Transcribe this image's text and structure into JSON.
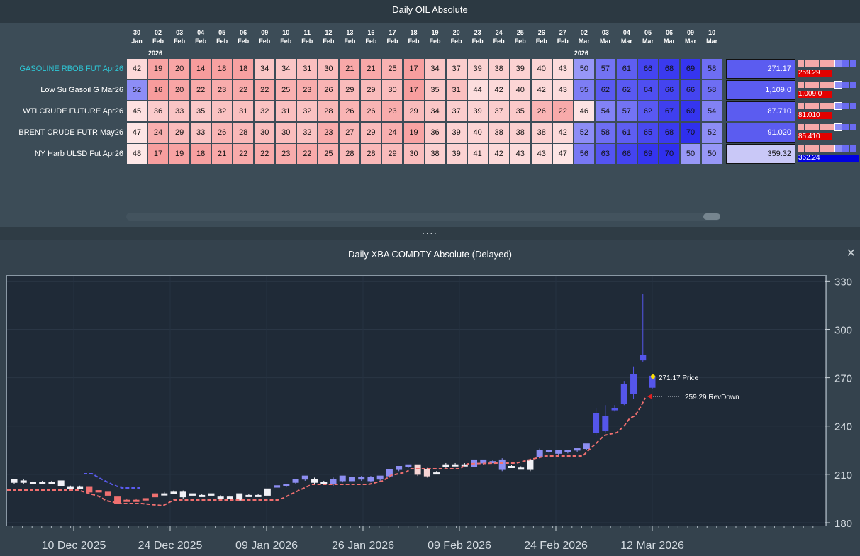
{
  "top_panel": {
    "title": "Daily OIL Absolute",
    "dates": [
      {
        "day": "30",
        "mon": "Jan"
      },
      {
        "day": "02",
        "mon": "Feb"
      },
      {
        "day": "03",
        "mon": "Feb"
      },
      {
        "day": "04",
        "mon": "Feb"
      },
      {
        "day": "05",
        "mon": "Feb"
      },
      {
        "day": "06",
        "mon": "Feb"
      },
      {
        "day": "09",
        "mon": "Feb"
      },
      {
        "day": "10",
        "mon": "Feb"
      },
      {
        "day": "11",
        "mon": "Feb"
      },
      {
        "day": "12",
        "mon": "Feb"
      },
      {
        "day": "13",
        "mon": "Feb"
      },
      {
        "day": "16",
        "mon": "Feb"
      },
      {
        "day": "17",
        "mon": "Feb"
      },
      {
        "day": "18",
        "mon": "Feb"
      },
      {
        "day": "19",
        "mon": "Feb"
      },
      {
        "day": "20",
        "mon": "Feb"
      },
      {
        "day": "23",
        "mon": "Feb"
      },
      {
        "day": "24",
        "mon": "Feb"
      },
      {
        "day": "25",
        "mon": "Feb"
      },
      {
        "day": "26",
        "mon": "Feb"
      },
      {
        "day": "27",
        "mon": "Feb"
      },
      {
        "day": "02",
        "mon": "Mar"
      },
      {
        "day": "03",
        "mon": "Mar"
      },
      {
        "day": "04",
        "mon": "Mar"
      },
      {
        "day": "05",
        "mon": "Mar"
      },
      {
        "day": "06",
        "mon": "Mar"
      },
      {
        "day": "09",
        "mon": "Mar"
      },
      {
        "day": "10",
        "mon": "Mar"
      }
    ],
    "year_markers": [
      {
        "col": 1,
        "label": "2026"
      },
      {
        "col": 21,
        "label": "2026"
      }
    ],
    "rows": [
      {
        "name": "GASOLINE RBOB FUT Apr26",
        "highlight": true,
        "values": [
          42,
          19,
          20,
          14,
          18,
          18,
          34,
          34,
          31,
          30,
          21,
          21,
          25,
          17,
          34,
          37,
          39,
          38,
          39,
          40,
          43,
          50,
          57,
          61,
          66,
          68,
          69,
          58
        ],
        "price": "271.17",
        "revdown": "259.29"
      },
      {
        "name": "Low Su Gasoil G   Mar26",
        "highlight": false,
        "values": [
          52,
          16,
          20,
          22,
          23,
          22,
          22,
          25,
          23,
          26,
          29,
          29,
          30,
          17,
          35,
          31,
          44,
          42,
          40,
          42,
          43,
          55,
          62,
          62,
          64,
          66,
          66,
          58
        ],
        "price": "1,109.0",
        "revdown": "1,009.0"
      },
      {
        "name": "WTI CRUDE FUTURE  Apr26",
        "highlight": false,
        "values": [
          45,
          36,
          33,
          35,
          32,
          31,
          32,
          31,
          32,
          28,
          26,
          26,
          23,
          29,
          34,
          37,
          39,
          37,
          35,
          26,
          22,
          46,
          54,
          57,
          62,
          67,
          69,
          54
        ],
        "price": "87.710",
        "revdown": "81.010"
      },
      {
        "name": "BRENT CRUDE FUTR  May26",
        "highlight": false,
        "values": [
          47,
          24,
          29,
          33,
          26,
          28,
          30,
          30,
          32,
          23,
          27,
          29,
          24,
          19,
          36,
          39,
          40,
          38,
          38,
          38,
          42,
          52,
          58,
          61,
          65,
          68,
          70,
          52
        ],
        "price": "91.020",
        "revdown": "85.410"
      },
      {
        "name": "NY Harb ULSD Fut  Apr26",
        "highlight": false,
        "values": [
          48,
          17,
          19,
          18,
          21,
          22,
          22,
          23,
          22,
          25,
          28,
          28,
          29,
          30,
          38,
          39,
          41,
          42,
          43,
          43,
          47,
          56,
          63,
          66,
          69,
          70,
          50,
          50
        ],
        "price": "359.32",
        "revdown": "362.24"
      }
    ],
    "colors": {
      "bull": "#5b5cf0",
      "bear": "#f05b5b",
      "accent_cyan": "#2ec9d8"
    }
  },
  "splitter_label": "....",
  "bottom_panel": {
    "title": "Daily XBA COMDTY Absolute   (Delayed)",
    "close_label": "✕"
  },
  "chart_data": {
    "type": "candlestick",
    "y_ticks": [
      "330",
      "300",
      "270",
      "240",
      "210",
      "180"
    ],
    "ylim": [
      180,
      335
    ],
    "x_ticks": [
      "10 Dec 2025",
      "24 Dec 2025",
      "09 Jan 2026",
      "26 Jan 2026",
      "09 Feb 2026",
      "24 Feb 2026",
      "12 Mar 2026"
    ],
    "candles": [
      {
        "o": 205,
        "c": 207,
        "h": 207,
        "l": 204,
        "dir": "w"
      },
      {
        "o": 205,
        "c": 206,
        "h": 207,
        "l": 204,
        "dir": "w"
      },
      {
        "o": 205,
        "c": 205,
        "h": 206,
        "l": 205,
        "dir": "w"
      },
      {
        "o": 205,
        "c": 205,
        "h": 206,
        "l": 205,
        "dir": "w"
      },
      {
        "o": 205,
        "c": 205,
        "h": 206,
        "l": 204,
        "dir": "w"
      },
      {
        "o": 203,
        "c": 206,
        "h": 206,
        "l": 203,
        "dir": "w"
      },
      {
        "o": 202,
        "c": 202,
        "h": 203,
        "l": 202,
        "dir": "w"
      },
      {
        "o": 202,
        "c": 202,
        "h": 203,
        "l": 202,
        "dir": "w"
      },
      {
        "o": 202,
        "c": 199,
        "h": 202,
        "l": 199,
        "dir": "d"
      },
      {
        "o": 200,
        "c": 199,
        "h": 200,
        "l": 199,
        "dir": "d"
      },
      {
        "o": 199,
        "c": 197,
        "h": 199,
        "l": 197,
        "dir": "d"
      },
      {
        "o": 196,
        "c": 192,
        "h": 196,
        "l": 192,
        "dir": "d"
      },
      {
        "o": 194,
        "c": 194,
        "h": 195,
        "l": 193,
        "dir": "d"
      },
      {
        "o": 194,
        "c": 194,
        "h": 195,
        "l": 194,
        "dir": "d"
      },
      {
        "o": 195,
        "c": 194,
        "h": 195,
        "l": 194,
        "dir": "d"
      },
      {
        "o": 198,
        "c": 196,
        "h": 199,
        "l": 196,
        "dir": "d"
      },
      {
        "o": 198,
        "c": 198,
        "h": 199,
        "l": 198,
        "dir": "w"
      },
      {
        "o": 199,
        "c": 199,
        "h": 200,
        "l": 199,
        "dir": "w"
      },
      {
        "o": 196,
        "c": 199,
        "h": 200,
        "l": 195,
        "dir": "w"
      },
      {
        "o": 197,
        "c": 198,
        "h": 198,
        "l": 197,
        "dir": "w"
      },
      {
        "o": 197,
        "c": 197,
        "h": 198,
        "l": 197,
        "dir": "w"
      },
      {
        "o": 198,
        "c": 197,
        "h": 198,
        "l": 197,
        "dir": "w"
      },
      {
        "o": 196,
        "c": 196,
        "h": 197,
        "l": 196,
        "dir": "w"
      },
      {
        "o": 196,
        "c": 196,
        "h": 197,
        "l": 196,
        "dir": "w"
      },
      {
        "o": 194,
        "c": 198,
        "h": 198,
        "l": 194,
        "dir": "w"
      },
      {
        "o": 197,
        "c": 197,
        "h": 198,
        "l": 197,
        "dir": "w"
      },
      {
        "o": 197,
        "c": 197,
        "h": 198,
        "l": 197,
        "dir": "w"
      },
      {
        "o": 197,
        "c": 201,
        "h": 201,
        "l": 197,
        "dir": "w"
      },
      {
        "o": 202,
        "c": 203,
        "h": 203,
        "l": 202,
        "dir": "u"
      },
      {
        "o": 203,
        "c": 204,
        "h": 204,
        "l": 202,
        "dir": "u"
      },
      {
        "o": 205,
        "c": 207,
        "h": 207,
        "l": 204,
        "dir": "u"
      },
      {
        "o": 207,
        "c": 209,
        "h": 209,
        "l": 206,
        "dir": "u"
      },
      {
        "o": 205,
        "c": 207,
        "h": 208,
        "l": 204,
        "dir": "w"
      },
      {
        "o": 205,
        "c": 205,
        "h": 206,
        "l": 204,
        "dir": "w"
      },
      {
        "o": 204,
        "c": 207,
        "h": 208,
        "l": 203,
        "dir": "u"
      },
      {
        "o": 206,
        "c": 209,
        "h": 209,
        "l": 205,
        "dir": "u"
      },
      {
        "o": 206,
        "c": 208,
        "h": 209,
        "l": 205,
        "dir": "u"
      },
      {
        "o": 207,
        "c": 208,
        "h": 209,
        "l": 206,
        "dir": "u"
      },
      {
        "o": 206,
        "c": 208,
        "h": 209,
        "l": 205,
        "dir": "u"
      },
      {
        "o": 207,
        "c": 209,
        "h": 209,
        "l": 206,
        "dir": "u"
      },
      {
        "o": 209,
        "c": 213,
        "h": 213,
        "l": 208,
        "dir": "u"
      },
      {
        "o": 213,
        "c": 215,
        "h": 215,
        "l": 212,
        "dir": "u"
      },
      {
        "o": 215,
        "c": 216,
        "h": 216,
        "l": 214,
        "dir": "u"
      },
      {
        "o": 216,
        "c": 210,
        "h": 216,
        "l": 209,
        "dir": "d2"
      },
      {
        "o": 213,
        "c": 209,
        "h": 214,
        "l": 208,
        "dir": "d2"
      },
      {
        "o": 211,
        "c": 211,
        "h": 212,
        "l": 211,
        "dir": "w"
      },
      {
        "o": 215,
        "c": 216,
        "h": 217,
        "l": 214,
        "dir": "w"
      },
      {
        "o": 216,
        "c": 216,
        "h": 217,
        "l": 215,
        "dir": "w"
      },
      {
        "o": 216,
        "c": 216,
        "h": 217,
        "l": 215,
        "dir": "w"
      },
      {
        "o": 215,
        "c": 219,
        "h": 219,
        "l": 214,
        "dir": "u"
      },
      {
        "o": 217,
        "c": 219,
        "h": 219,
        "l": 216,
        "dir": "u"
      },
      {
        "o": 218,
        "c": 218,
        "h": 219,
        "l": 217,
        "dir": "u"
      },
      {
        "o": 213,
        "c": 219,
        "h": 220,
        "l": 212,
        "dir": "u"
      },
      {
        "o": 215,
        "c": 215,
        "h": 216,
        "l": 214,
        "dir": "w"
      },
      {
        "o": 214,
        "c": 214,
        "h": 215,
        "l": 213,
        "dir": "w"
      },
      {
        "o": 213,
        "c": 219,
        "h": 219,
        "l": 212,
        "dir": "w"
      },
      {
        "o": 221,
        "c": 225,
        "h": 226,
        "l": 220,
        "dir": "u"
      },
      {
        "o": 224,
        "c": 225,
        "h": 225,
        "l": 223,
        "dir": "u"
      },
      {
        "o": 223,
        "c": 225,
        "h": 225,
        "l": 222,
        "dir": "u"
      },
      {
        "o": 224,
        "c": 225,
        "h": 225,
        "l": 223,
        "dir": "u"
      },
      {
        "o": 225,
        "c": 226,
        "h": 226,
        "l": 224,
        "dir": "u"
      },
      {
        "o": 226,
        "c": 229,
        "h": 229,
        "l": 225,
        "dir": "u"
      },
      {
        "o": 236,
        "c": 248,
        "h": 251,
        "l": 234,
        "dir": "B"
      },
      {
        "o": 237,
        "c": 246,
        "h": 253,
        "l": 236,
        "dir": "B"
      },
      {
        "o": 250,
        "c": 251,
        "h": 253,
        "l": 249,
        "dir": "B"
      },
      {
        "o": 254,
        "c": 266,
        "h": 268,
        "l": 253,
        "dir": "B"
      },
      {
        "o": 260,
        "c": 272,
        "h": 277,
        "l": 257,
        "dir": "B"
      },
      {
        "o": 281,
        "c": 284,
        "h": 322,
        "l": 280,
        "dir": "B"
      },
      {
        "o": 264,
        "c": 271,
        "h": 272,
        "l": 263,
        "dir": "B"
      }
    ],
    "price_label": "271.17  Price",
    "revdown_label": "259.29 RevDown"
  }
}
